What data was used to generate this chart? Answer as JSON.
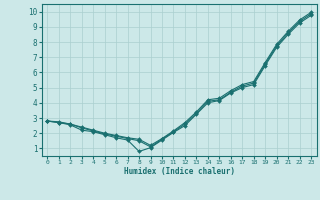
{
  "background_color": "#cce8e8",
  "grid_color": "#aacfcf",
  "line_color": "#1a7070",
  "xlabel": "Humidex (Indice chaleur)",
  "ylim": [
    0.5,
    10.5
  ],
  "xlim": [
    -0.5,
    23.5
  ],
  "yticks": [
    1,
    2,
    3,
    4,
    5,
    6,
    7,
    8,
    9,
    10
  ],
  "xticks": [
    0,
    1,
    2,
    3,
    4,
    5,
    6,
    7,
    8,
    9,
    10,
    11,
    12,
    13,
    14,
    15,
    16,
    17,
    18,
    19,
    20,
    21,
    22,
    23
  ],
  "line1_x": [
    0,
    1,
    2,
    3,
    4,
    5,
    6,
    7,
    8,
    9,
    10,
    11,
    12,
    13,
    14,
    15,
    16,
    17,
    18,
    19,
    20,
    21,
    22,
    23
  ],
  "line1_y": [
    2.8,
    2.7,
    2.6,
    2.35,
    2.15,
    1.95,
    1.8,
    1.65,
    1.5,
    1.1,
    1.6,
    2.1,
    2.6,
    3.3,
    4.1,
    4.2,
    4.7,
    5.1,
    5.3,
    6.55,
    7.75,
    8.6,
    9.35,
    9.85
  ],
  "line2_x": [
    0,
    1,
    2,
    3,
    4,
    5,
    6,
    7,
    8,
    9,
    10,
    11,
    12,
    13,
    14,
    15,
    16,
    17,
    18,
    19,
    20,
    21,
    22,
    23
  ],
  "line2_y": [
    2.8,
    2.7,
    2.55,
    2.2,
    2.1,
    1.9,
    1.7,
    1.55,
    0.8,
    1.05,
    1.55,
    2.05,
    2.5,
    3.25,
    4.0,
    4.15,
    4.65,
    5.0,
    5.2,
    6.45,
    7.65,
    8.5,
    9.25,
    9.75
  ],
  "line3_x": [
    0,
    1,
    2,
    3,
    4,
    5,
    6,
    7,
    8,
    9,
    10,
    11,
    12,
    13,
    14,
    15,
    16,
    17,
    18,
    19,
    20,
    21,
    22,
    23
  ],
  "line3_y": [
    2.8,
    2.75,
    2.6,
    2.4,
    2.2,
    2.0,
    1.85,
    1.7,
    1.6,
    1.2,
    1.65,
    2.15,
    2.7,
    3.4,
    4.2,
    4.3,
    4.8,
    5.2,
    5.4,
    6.65,
    7.85,
    8.7,
    9.45,
    9.95
  ]
}
